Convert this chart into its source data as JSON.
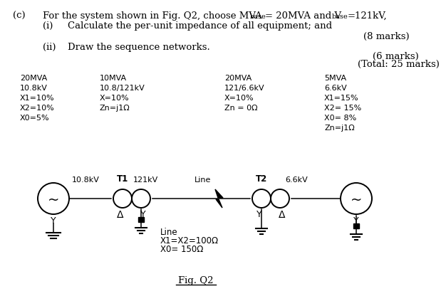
{
  "bg_color": "#ffffff",
  "text_color": "#000000",
  "gen1_label": "20MVA\n10.8kV\nX1=10%\nX2=10%\nX0=5%",
  "t1_label": "10MVA\n10.8/121kV\nX=10%\nZn=j1Ω",
  "t2_label": "20MVA\n121/6.6kV\nX=10%\nZn = 0Ω",
  "gen2_label": "5MVA\n6.6kV\nX1=15%\nX2= 15%\nX0= 8%\nZn=j1Ω",
  "v1": "10.8kV",
  "v2": "121kV",
  "v3": "6.6kV",
  "t1_name": "T1",
  "t2_name": "T2",
  "line_above": "Line",
  "line_specs": "Line\nX1=X2=100Ω\nX0= 150Ω",
  "fig_label": "Fig. Q2",
  "marks1": "(8 marks)",
  "marks2": "(6 marks)",
  "marks3": "(Total: 25 marks)"
}
